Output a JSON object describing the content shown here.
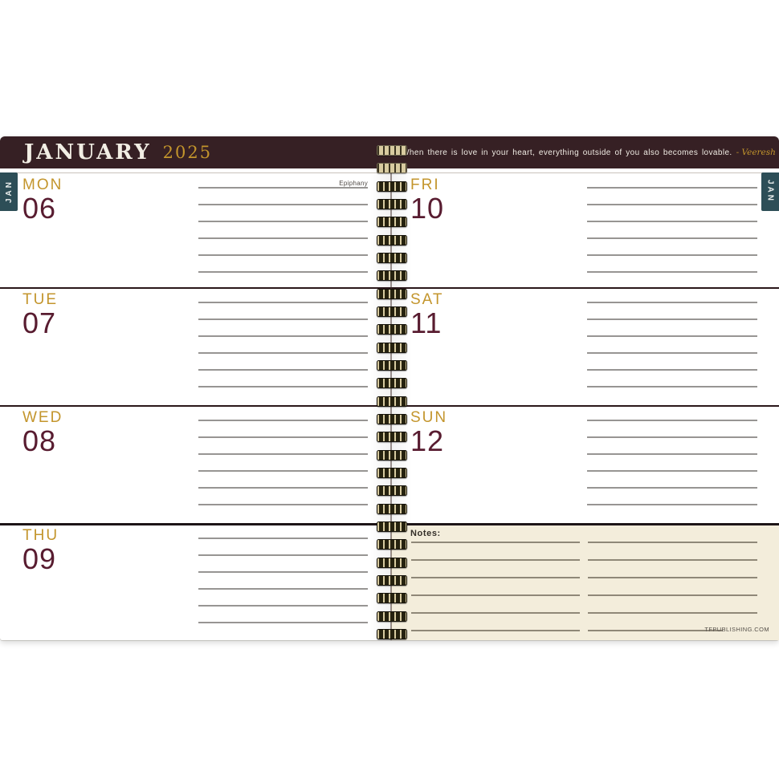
{
  "header": {
    "month": "JANUARY",
    "year": "2025",
    "quote": "When there is love in your heart, everything outside of you also becomes lovable.",
    "attribution": "- Veeresh"
  },
  "side_tabs": {
    "left": "JAN",
    "right": "JAN"
  },
  "left_page": {
    "days": [
      {
        "name": "MON",
        "date": "06",
        "holiday": "Epiphany"
      },
      {
        "name": "TUE",
        "date": "07"
      },
      {
        "name": "WED",
        "date": "08"
      },
      {
        "name": "THU",
        "date": "09"
      }
    ]
  },
  "right_page": {
    "days": [
      {
        "name": "FRI",
        "date": "10"
      },
      {
        "name": "SAT",
        "date": "11"
      },
      {
        "name": "SUN",
        "date": "12"
      }
    ],
    "notes_label": "Notes:",
    "website": "TFPUBLISHING.COM"
  },
  "colors": {
    "header_band": "#362024",
    "accent_gold": "#c3952c",
    "date_maroon": "#581c30",
    "tab_teal": "#2d4e57",
    "rule_gray": "#979593",
    "notes_cream": "#f3eddb"
  }
}
